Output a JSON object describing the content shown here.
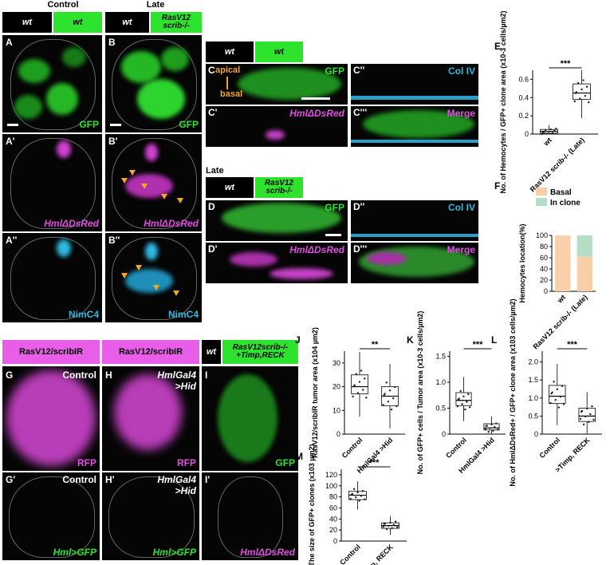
{
  "headers": {
    "control": "Control",
    "late": "Late",
    "late_d": "Late"
  },
  "boxes": {
    "wt": "wt",
    "ras": "RasV12 scrib-/-",
    "ras_scrib_ir": "RasV12/scribIR",
    "ras_timp": "RasV12scrib-/- +Timp,RECK"
  },
  "panel_labels": {
    "A": "A",
    "A1": "A'",
    "A2": "A''",
    "B": "B",
    "B1": "B'",
    "B2": "B''",
    "C": "C",
    "C1": "C'",
    "C2": "C''",
    "C3": "C'''",
    "D": "D",
    "D1": "D'",
    "D2": "D''",
    "D3": "D'''",
    "E": "E",
    "F": "F",
    "G": "G",
    "G1": "G'",
    "H": "H",
    "H1": "H'",
    "I": "I",
    "I1": "I'",
    "J": "J",
    "K": "K",
    "L": "L",
    "M": "M"
  },
  "channels": {
    "gfp": "GFP",
    "hml_dsred": "HmlΔDsRed",
    "nimc4": "NimC4",
    "col_iv": "Col IV",
    "merge": "Merge",
    "rfp": "RFP",
    "hml_gfp": "Hml>GFP",
    "control": "Control",
    "hmlgal4_hid": "HmlGal4 >Hid",
    "apical": "apical",
    "basal": "basal"
  },
  "colors": {
    "gfp_green": "#2ee32e",
    "magenta": "#e04ee0",
    "cyan": "#2fb8e0",
    "orange": "#f5a623",
    "basal_fill": "#f8cfa8",
    "in_clone_fill": "#b5dec8"
  },
  "chart_data": [
    {
      "id": "E",
      "type": "box",
      "ylabel": "No. of Hemocytes / GFP+ clone area (x10-3 cells/µm2)",
      "categories": [
        "wt",
        "RasV12 scrib-/- (Late)"
      ],
      "yticks": [
        "0",
        "0.2",
        "0.4",
        "0.6"
      ],
      "ylim": [
        0,
        0.7
      ],
      "medians": [
        0.03,
        0.45
      ],
      "q1": [
        0.01,
        0.38
      ],
      "q3": [
        0.05,
        0.55
      ],
      "significance": "***"
    },
    {
      "id": "F",
      "type": "bar",
      "ylabel": "Hemocytes location(%)",
      "categories": [
        "wt",
        "RasV12 scrib-/- (Late)"
      ],
      "yticks": [
        "0",
        "20",
        "40",
        "60",
        "80",
        "100"
      ],
      "ylim": [
        0,
        100
      ],
      "series": [
        {
          "name": "Basal",
          "values": [
            100,
            62
          ]
        },
        {
          "name": "In clone",
          "values": [
            0,
            38
          ]
        }
      ]
    },
    {
      "id": "J",
      "type": "box",
      "ylabel": "RasV12/scribIR tumor area (x104 µm2)",
      "categories": [
        "Control",
        "HmlGal4 >Hid"
      ],
      "yticks": [
        "0",
        "10",
        "20",
        "30"
      ],
      "ylim": [
        0,
        35
      ],
      "medians": [
        20,
        16
      ],
      "q1": [
        17,
        12
      ],
      "q3": [
        25,
        20
      ],
      "significance": "**"
    },
    {
      "id": "K",
      "type": "box",
      "ylabel": "No. of GFP+ cells / Tumor area (x10-3 cells/µm2)",
      "categories": [
        "Control",
        "HmlGal4 >Hid"
      ],
      "yticks": [
        "0",
        "0.5",
        "1.0",
        "1.5"
      ],
      "ylim": [
        0,
        1.6
      ],
      "medians": [
        0.65,
        0.12
      ],
      "q1": [
        0.55,
        0.08
      ],
      "q3": [
        0.8,
        0.2
      ],
      "significance": "***"
    },
    {
      "id": "L",
      "type": "box",
      "ylabel": "No. of HmlΔDsRed+ / GFP+ clone area (x103 cells/µm2)",
      "categories": [
        "Control",
        ">Timp, RECK"
      ],
      "yticks": [
        "0",
        "0.5",
        "1.0",
        "1.5",
        "2.0"
      ],
      "ylim": [
        0,
        2.3
      ],
      "medians": [
        1.05,
        0.5
      ],
      "q1": [
        0.85,
        0.35
      ],
      "q3": [
        1.35,
        0.72
      ],
      "significance": "***"
    },
    {
      "id": "M",
      "type": "box",
      "ylabel": "The size of GFP+ clones (x103 µm2)",
      "categories": [
        "Control",
        ">Timp, RECK"
      ],
      "yticks": [
        "0",
        "20",
        "40",
        "60",
        "80",
        "100",
        "120"
      ],
      "ylim": [
        0,
        130
      ],
      "medians": [
        83,
        28
      ],
      "q1": [
        75,
        23
      ],
      "q3": [
        90,
        33
      ],
      "significance": "***"
    }
  ]
}
